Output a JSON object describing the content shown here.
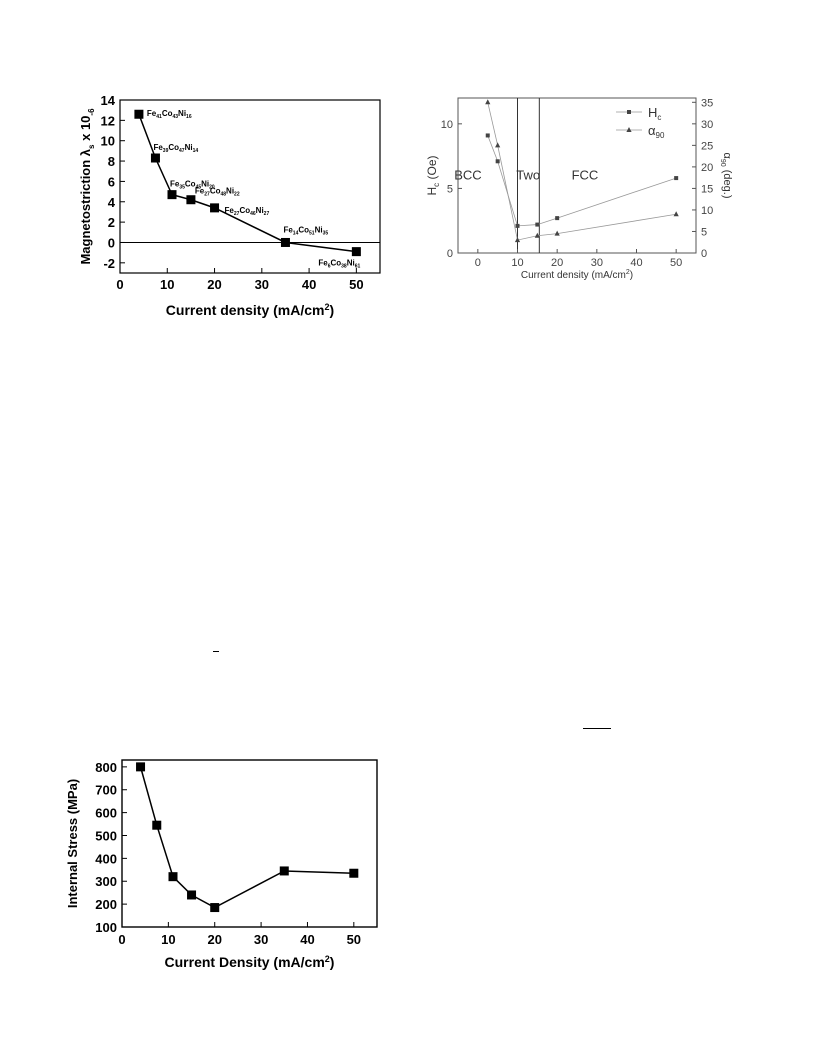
{
  "chart_data": [
    {
      "type": "line",
      "x": [
        4,
        7.5,
        11,
        15,
        20,
        35,
        50
      ],
      "values": [
        12.6,
        8.3,
        4.7,
        4.2,
        3.4,
        0.0,
        -0.9
      ],
      "point_labels": [
        [
          "Fe",
          "41",
          "Co",
          "43",
          "Ni",
          "16"
        ],
        [
          "Fe",
          "39",
          "Co",
          "47",
          "Ni",
          "14"
        ],
        [
          "Fe",
          "35",
          "Co",
          "45",
          "Ni",
          "20"
        ],
        [
          "Fe",
          "27",
          "Co",
          "48",
          "Ni",
          "22"
        ],
        [
          "Fe",
          "27",
          "Co",
          "46",
          "Ni",
          "27"
        ],
        [
          "Fe",
          "14",
          "Co",
          "51",
          "Ni",
          "35"
        ],
        [
          "Fe",
          "6",
          "Co",
          "38",
          "Ni",
          "61"
        ]
      ],
      "xlabel": [
        "Current density (mA/cm",
        "2",
        ")"
      ],
      "ylabel": [
        "Magnetostriction λ",
        "s",
        " x 10",
        "-6"
      ],
      "xlim": [
        0,
        55
      ],
      "ylim": [
        -3,
        14
      ],
      "xticks": [
        0,
        10,
        20,
        30,
        40,
        50
      ],
      "yticks": [
        -2,
        0,
        2,
        4,
        6,
        8,
        10,
        12,
        14
      ],
      "reference_line": 0,
      "grid": false
    },
    {
      "type": "line",
      "series": [
        {
          "name": [
            "H",
            "c"
          ],
          "marker": "square",
          "axis": "left",
          "x": [
            2.5,
            5,
            10,
            15,
            20,
            50
          ],
          "values": [
            9.1,
            7.1,
            2.1,
            2.2,
            2.7,
            5.8
          ]
        },
        {
          "name": [
            "α",
            "90"
          ],
          "marker": "triangle",
          "axis": "right",
          "x": [
            2.5,
            5,
            10,
            15,
            20,
            50
          ],
          "values": [
            35,
            25,
            3,
            4,
            4.5,
            9
          ]
        }
      ],
      "xlabel": [
        "Current density (mA/cm",
        "2",
        ")"
      ],
      "ylabel_left": [
        "H",
        "c",
        " (Oe)"
      ],
      "ylabel_right": [
        "α",
        "90",
        " (deg.)"
      ],
      "xlim": [
        -5,
        55
      ],
      "ylim_left": [
        0,
        12
      ],
      "ylim_right": [
        0,
        36
      ],
      "xticks": [
        0,
        10,
        20,
        30,
        40,
        50
      ],
      "yticks_left": [
        0,
        5,
        10
      ],
      "yticks_right": [
        0,
        5,
        10,
        15,
        20,
        25,
        30,
        35
      ],
      "region_lines": [
        10,
        15.5
      ],
      "regions": [
        "BCC",
        "Two",
        "FCC"
      ],
      "legend": "top-right",
      "grid": false
    },
    {
      "type": "line",
      "x": [
        4,
        7.5,
        11,
        15,
        20,
        35,
        50
      ],
      "values": [
        800,
        545,
        320,
        240,
        185,
        345,
        335
      ],
      "xlabel": [
        "Current Density (mA/cm",
        "2",
        ")"
      ],
      "ylabel": "Internal Stress (MPa)",
      "xlim": [
        0,
        55
      ],
      "ylim": [
        100,
        830
      ],
      "xticks": [
        0,
        10,
        20,
        30,
        40,
        50
      ],
      "yticks": [
        100,
        200,
        300,
        400,
        500,
        600,
        700,
        800
      ],
      "grid": false
    }
  ]
}
